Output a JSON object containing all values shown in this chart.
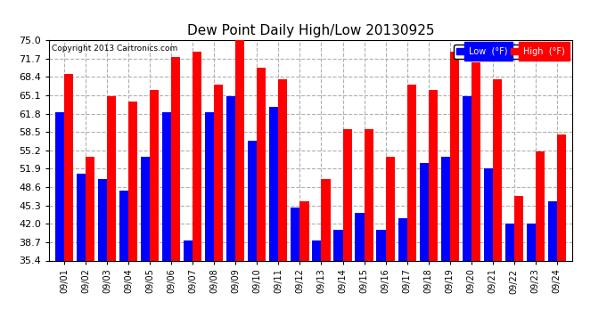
{
  "title": "Dew Point Daily High/Low 20130925",
  "copyright": "Copyright 2013 Cartronics.com",
  "dates": [
    "09/01",
    "09/02",
    "09/03",
    "09/04",
    "09/05",
    "09/06",
    "09/07",
    "09/08",
    "09/09",
    "09/10",
    "09/11",
    "09/12",
    "09/13",
    "09/14",
    "09/15",
    "09/16",
    "09/17",
    "09/18",
    "09/19",
    "09/20",
    "09/21",
    "09/22",
    "09/23",
    "09/24"
  ],
  "low_values": [
    62,
    51,
    50,
    48,
    54,
    62,
    39,
    62,
    65,
    57,
    63,
    45,
    39,
    41,
    44,
    41,
    43,
    53,
    54,
    65,
    52,
    42,
    42,
    46
  ],
  "high_values": [
    69,
    54,
    65,
    64,
    66,
    72,
    73,
    67,
    75,
    70,
    68,
    46,
    50,
    59,
    59,
    54,
    67,
    66,
    73,
    71,
    68,
    47,
    55,
    58
  ],
  "low_color": "#0000ff",
  "high_color": "#ff0000",
  "bg_color": "#ffffff",
  "grid_color": "#b0b0b0",
  "yticks": [
    35.4,
    38.7,
    42.0,
    45.3,
    48.6,
    51.9,
    55.2,
    58.5,
    61.8,
    65.1,
    68.4,
    71.7,
    75.0
  ],
  "ymin": 35.4,
  "ymax": 75.0,
  "legend_low_label": "Low  (°F)",
  "legend_high_label": "High  (°F)"
}
